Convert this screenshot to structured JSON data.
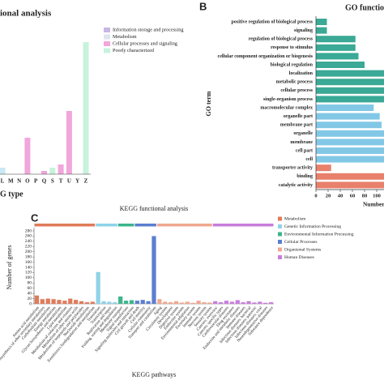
{
  "chart_data": [
    {
      "type": "bar",
      "panel": "",
      "title": "ional analysis",
      "xlabel": "G type",
      "categories": [
        "L",
        "M",
        "N",
        "O",
        "P",
        "Q",
        "S",
        "T",
        "U",
        "Y",
        "Z"
      ],
      "values": [
        8,
        0,
        0,
        45,
        0,
        4,
        8,
        12,
        78,
        0,
        163
      ],
      "colors": [
        "#c9e9f5",
        "#c9e9f5",
        "#c9e9f5",
        "#f2a6dc",
        "#f2a6dc",
        "#f2a6dc",
        "#c8f2dc",
        "#f2a6dc",
        "#f2a6dc",
        "#f2a6dc",
        "#c8f2dc"
      ],
      "legend": [
        {
          "name": "Information storage and processing",
          "color": "#c9b6e4"
        },
        {
          "name": "Metabolism",
          "color": "#dde4ee"
        },
        {
          "name": "Cellular processes and signaling",
          "color": "#f2a6dc"
        },
        {
          "name": "Poorly characterized",
          "color": "#c8f2dc"
        }
      ]
    },
    {
      "type": "hbar",
      "panel": "B",
      "title": "GO function",
      "ylabel": "GO term",
      "xlabel": "Number",
      "categories": [
        "positive regulation of biological process",
        "signaling",
        "regulation of biological process",
        "response to stimulus",
        "cellular component organization or biogenesis",
        "biological regulation",
        "localization",
        "metabolic process",
        "cellular process",
        "single-organism process",
        "macromolecular complex",
        "organelle part",
        "membrane part",
        "organelle",
        "membrane",
        "cell part",
        "cell",
        "transporter activity",
        "binding",
        "catalytic activity"
      ],
      "values": [
        18,
        18,
        65,
        65,
        70,
        80,
        120,
        120,
        120,
        120,
        95,
        105,
        108,
        115,
        118,
        118,
        118,
        25,
        120,
        120
      ],
      "colors": [
        "#3aa996",
        "#3aa996",
        "#3aa996",
        "#3aa996",
        "#3aa996",
        "#3aa996",
        "#3aa996",
        "#3aa996",
        "#3aa996",
        "#3aa996",
        "#82c8e6",
        "#82c8e6",
        "#82c8e6",
        "#82c8e6",
        "#82c8e6",
        "#82c8e6",
        "#82c8e6",
        "#e8806c",
        "#e8806c",
        "#e8806c"
      ],
      "xlim": [
        0,
        110
      ],
      "xticks": [
        0,
        20,
        40,
        60,
        80,
        100
      ]
    },
    {
      "type": "groupbar",
      "panel": "C",
      "title": "KEGG functional analysis",
      "xlabel": "KEGG pathways",
      "ylabel": "Number of genes",
      "ylim": [
        0,
        280
      ],
      "yticks": [
        0,
        20,
        40,
        60,
        80,
        100,
        120,
        140,
        160,
        180,
        200,
        220,
        240,
        260,
        280
      ],
      "series": [
        {
          "name": "Metabolism",
          "color": "#e07b5a",
          "categories": [
            "Amino acid metabolism",
            "Biosynthesis of other secondary metabolites",
            "Carbohydrate metabolism",
            "Energy metabolism",
            "Glycan biosynthesis and metabolism",
            "Lipid metabolism",
            "Metabolism of cofactors and vitamins",
            "Metabolism of other amino acids",
            "Metabolism of terpenoids and polyketides",
            "Nucleotide metabolism",
            "Xenobiotics biodegradation and metabolism"
          ],
          "values": [
            32,
            18,
            20,
            18,
            15,
            12,
            20,
            15,
            10,
            6,
            8
          ]
        },
        {
          "name": "Genetic Information Processing",
          "color": "#8fd3e8",
          "categories": [
            "Translation",
            "Transcription",
            "Replication and repair",
            "Folding, sorting and degradation"
          ],
          "values": [
            122,
            10,
            8,
            6
          ]
        },
        {
          "name": "Environmental Information Processing",
          "color": "#3cb48c",
          "categories": [
            "Membrane transport",
            "Signal transduction",
            "Signaling molecules and interaction"
          ],
          "values": [
            28,
            12,
            14
          ]
        },
        {
          "name": "Cellular Processes",
          "color": "#5b7fcf",
          "categories": [
            "Cell growth and death",
            "Cell motility",
            "Cellular community",
            "Transport and catabolism"
          ],
          "values": [
            12,
            15,
            10,
            260
          ]
        },
        {
          "name": "Organismal Systems",
          "color": "#f0a890",
          "categories": [
            "Aging",
            "Circulatory system",
            "Development",
            "Digestive system",
            "Endocrine system",
            "Environmental adaptation",
            "Excretory system",
            "Immune system",
            "Nervous system",
            "Sensory system"
          ],
          "values": [
            18,
            8,
            6,
            10,
            5,
            8,
            4,
            12,
            6,
            5
          ]
        },
        {
          "name": "Human Diseases",
          "color": "#c77ddb",
          "categories": [
            "Cancers: overview",
            "Cancers: specific types",
            "Cardiovascular diseases",
            "Drug resistance",
            "Endocrine and metabolic diseases",
            "Immune diseases",
            "Infectious diseases: bacterial",
            "Infectious diseases: parasitic",
            "Infectious diseases: viral",
            "Neurodegenerative diseases",
            "Substance dependence"
          ],
          "values": [
            10,
            6,
            12,
            8,
            14,
            6,
            10,
            5,
            8,
            4,
            6
          ]
        }
      ]
    }
  ]
}
